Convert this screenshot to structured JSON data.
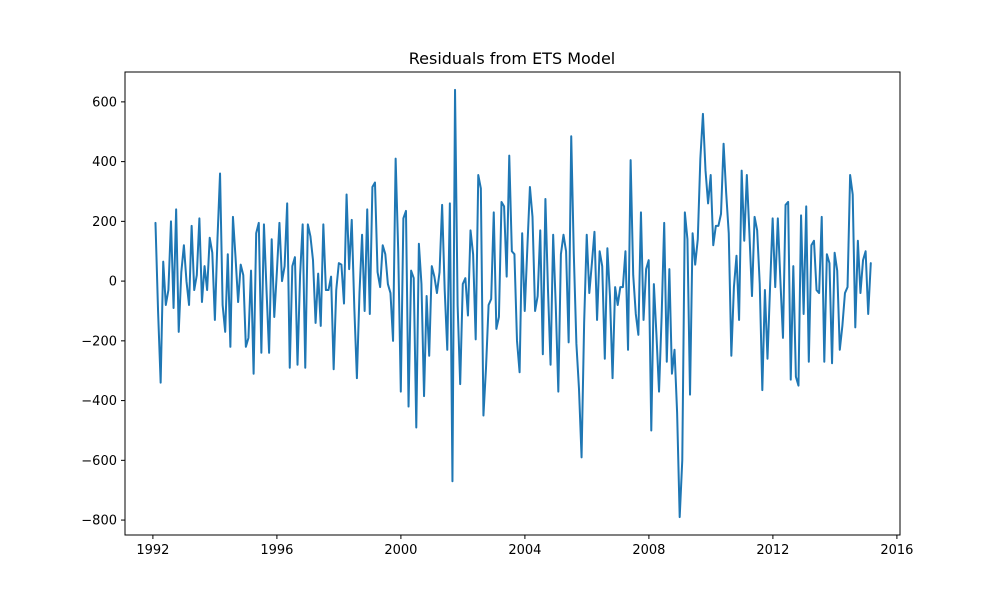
{
  "chart_data": {
    "type": "line",
    "title": "Residuals from ETS Model",
    "xlabel": "",
    "ylabel": "",
    "xlim": [
      1991.1,
      2016.1
    ],
    "ylim": [
      -850,
      700
    ],
    "x_ticks": [
      1992,
      1996,
      2000,
      2004,
      2008,
      2012,
      2016
    ],
    "x_tick_labels": [
      "1992",
      "1996",
      "2000",
      "2004",
      "2008",
      "2012",
      "2016"
    ],
    "y_ticks": [
      600,
      400,
      200,
      0,
      -200,
      -400,
      -600,
      -800
    ],
    "y_tick_labels": [
      "600",
      "400",
      "200",
      "0",
      "−200",
      "−400",
      "−600",
      "−800"
    ],
    "grid": false,
    "legend": "none",
    "x_start": 1992.0833,
    "x_step": 0.0833,
    "series": [
      {
        "color": "#1f77b4",
        "values": [
          195,
          -100,
          -340,
          65,
          -80,
          -30,
          200,
          -90,
          240,
          -170,
          30,
          120,
          0,
          -80,
          185,
          -30,
          20,
          210,
          -70,
          50,
          -30,
          145,
          95,
          -130,
          140,
          360,
          -80,
          -170,
          90,
          -220,
          215,
          80,
          -70,
          55,
          20,
          -220,
          -190,
          35,
          -310,
          160,
          195,
          -240,
          190,
          -30,
          -240,
          140,
          -120,
          30,
          195,
          0,
          50,
          260,
          -290,
          50,
          80,
          -280,
          20,
          190,
          -290,
          190,
          150,
          70,
          -140,
          25,
          -150,
          190,
          -30,
          -30,
          15,
          -295,
          -30,
          60,
          55,
          -75,
          290,
          40,
          205,
          -90,
          -325,
          -40,
          155,
          -100,
          240,
          -110,
          315,
          330,
          30,
          -20,
          120,
          90,
          -10,
          -40,
          -200,
          410,
          100,
          -370,
          210,
          235,
          -420,
          35,
          10,
          -490,
          125,
          -10,
          -385,
          -50,
          -250,
          50,
          15,
          -40,
          30,
          255,
          -30,
          -230,
          260,
          -670,
          640,
          -80,
          -345,
          -10,
          10,
          -115,
          170,
          90,
          -195,
          355,
          310,
          -450,
          -290,
          -80,
          -60,
          230,
          -160,
          -120,
          265,
          250,
          15,
          420,
          100,
          90,
          -200,
          -305,
          160,
          -100,
          110,
          315,
          215,
          -100,
          -50,
          170,
          -245,
          275,
          -30,
          -280,
          155,
          -80,
          -370,
          90,
          155,
          100,
          -205,
          485,
          90,
          -210,
          -360,
          -590,
          -140,
          155,
          -40,
          60,
          165,
          -130,
          100,
          50,
          -260,
          110,
          -50,
          -325,
          -20,
          -80,
          -20,
          -20,
          100,
          -230,
          405,
          20,
          -110,
          -180,
          230,
          -130,
          40,
          70,
          -500,
          -10,
          -180,
          -370,
          -120,
          195,
          -270,
          40,
          -310,
          -230,
          -440,
          -790,
          -600,
          230,
          140,
          -380,
          160,
          55,
          140,
          410,
          560,
          370,
          260,
          355,
          120,
          185,
          185,
          225,
          460,
          295,
          160,
          -250,
          -20,
          85,
          -130,
          370,
          135,
          355,
          160,
          -50,
          215,
          170,
          -10,
          -365,
          -30,
          -260,
          -20,
          210,
          -20,
          210,
          0,
          -190,
          255,
          265,
          -330,
          50,
          -320,
          -350,
          220,
          -110,
          250,
          -270,
          120,
          135,
          -30,
          -40,
          215,
          -270,
          90,
          60,
          -275,
          95,
          35,
          -230,
          -150,
          -40,
          -20,
          355,
          290,
          -155,
          135,
          -40,
          70,
          100,
          -110,
          60
        ]
      }
    ]
  }
}
